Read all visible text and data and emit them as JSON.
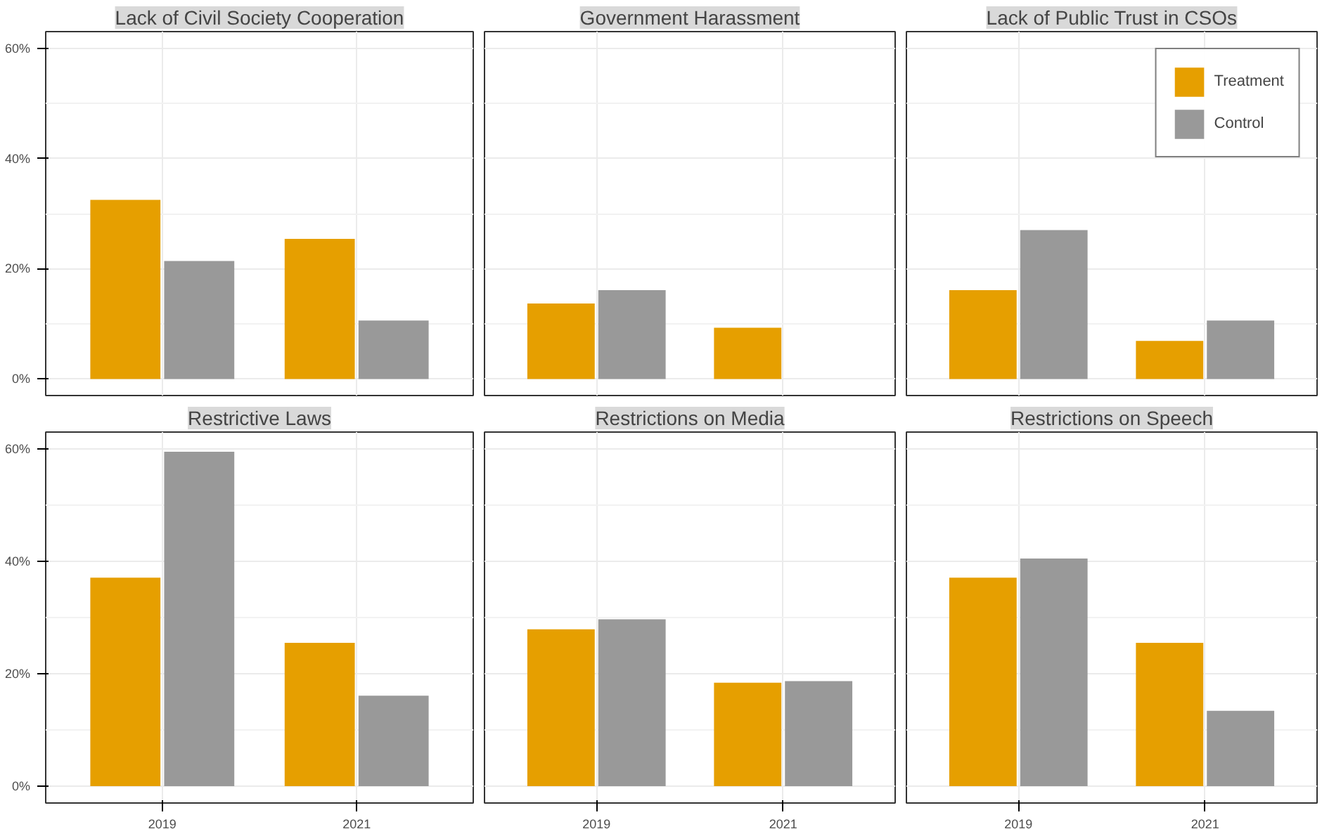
{
  "chart_data": [
    {
      "type": "bar",
      "title": "Lack of Civil Society Cooperation",
      "categories": [
        "2019",
        "2021"
      ],
      "series": [
        {
          "color": "#e69f00",
          "values": [
            32.5,
            25.4
          ]
        },
        {
          "color": "#999999",
          "values": [
            21.4,
            10.6
          ]
        }
      ],
      "ylim": [
        -3,
        63
      ],
      "yticks": [
        {
          "value": 0,
          "label": "0%"
        },
        {
          "value": 20,
          "label": "20%"
        },
        {
          "value": 40,
          "label": "40%"
        },
        {
          "value": 60,
          "label": "60%"
        }
      ],
      "grid": true,
      "tick_labels": "y"
    },
    {
      "type": "bar",
      "title": "Government Harassment",
      "categories": [
        "2019",
        "2021"
      ],
      "series": [
        {
          "color": "#e69f00",
          "values": [
            13.7,
            9.3
          ]
        },
        {
          "color": "#999999",
          "values": [
            16.1,
            null
          ]
        }
      ],
      "ylim": [
        -3,
        63
      ],
      "yticks": [
        0,
        20,
        40,
        60
      ],
      "grid": true,
      "tick_labels": false
    },
    {
      "type": "bar",
      "title": "Lack of Public Trust in CSOs",
      "categories": [
        "2019",
        "2021"
      ],
      "series": [
        {
          "name": "Treatment",
          "color": "#e69f00",
          "values": [
            16.1,
            6.9
          ]
        },
        {
          "name": "Control",
          "color": "#999999",
          "values": [
            27.0,
            10.6
          ]
        }
      ],
      "ylim": [
        -3,
        63
      ],
      "yticks": [
        0,
        20,
        40,
        60
      ],
      "grid": true,
      "tick_labels": false,
      "legend": "top right"
    },
    {
      "type": "bar",
      "title": "Restrictive Laws",
      "categories": [
        "2019",
        "2021"
      ],
      "series": [
        {
          "color": "#e69f00",
          "values": [
            37.1,
            25.5
          ]
        },
        {
          "color": "#999999",
          "values": [
            59.5,
            16.1
          ]
        }
      ],
      "ylim": [
        -3,
        63
      ],
      "yticks": [
        {
          "value": 0,
          "label": "0%"
        },
        {
          "value": 20,
          "label": "20%"
        },
        {
          "value": 40,
          "label": "40%"
        },
        {
          "value": 60,
          "label": "60%"
        }
      ],
      "grid": true
    },
    {
      "type": "bar",
      "title": "Restrictions on Media",
      "categories": [
        "2019",
        "2021"
      ],
      "series": [
        {
          "color": "#e69f00",
          "values": [
            27.9,
            18.4
          ]
        },
        {
          "color": "#999999",
          "values": [
            29.7,
            18.7
          ]
        }
      ],
      "ylim": [
        -3,
        63
      ],
      "yticks": [
        0,
        20,
        40,
        60
      ],
      "grid": true,
      "tick_labels": "x"
    },
    {
      "type": "bar",
      "title": "Restrictions on Speech",
      "categories": [
        "2019",
        "2021"
      ],
      "series": [
        {
          "color": "#e69f00",
          "values": [
            37.1,
            25.5
          ]
        },
        {
          "color": "#999999",
          "values": [
            40.5,
            13.4
          ]
        }
      ],
      "ylim": [
        -3,
        63
      ],
      "yticks": [
        0,
        20,
        40,
        60
      ],
      "grid": true,
      "tick_labels": "x"
    }
  ]
}
